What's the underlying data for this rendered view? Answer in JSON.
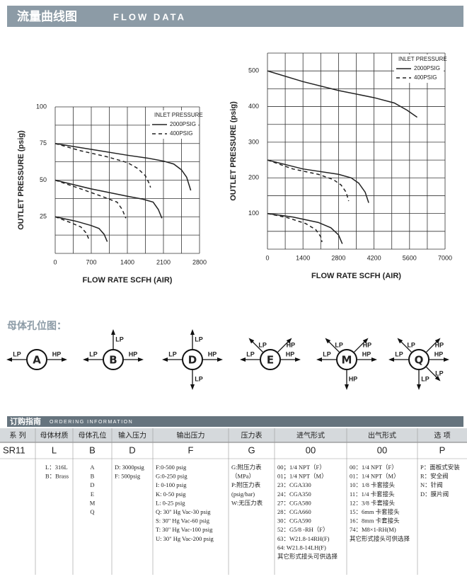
{
  "header": {
    "title_cn": "流量曲线图",
    "title_en": "FLOW DATA"
  },
  "chart_data": [
    {
      "type": "line",
      "y_label": "OUTLET PRESSURE (psig)",
      "x_label": "FLOW RATE SCFH (AIR)",
      "legend_title": "INLET PRESSURE",
      "xlim": [
        0,
        2800
      ],
      "xticks": [
        0,
        700,
        1400,
        2100,
        2800
      ],
      "ylim": [
        0,
        100
      ],
      "yticks": [
        25,
        50,
        75,
        100
      ],
      "xgrid": [
        0,
        350,
        700,
        1050,
        1400,
        1750,
        2100,
        2450,
        2800
      ],
      "ygrid": [
        0,
        12.5,
        25,
        37.5,
        50,
        62.5,
        75,
        87.5,
        100
      ],
      "series": [
        {
          "name": "2000PSIG",
          "color": "#222222",
          "dashed": false,
          "curves": [
            {
              "x": [
                0,
                700,
                1400,
                1800,
                2100,
                2300,
                2450,
                2550,
                2630
              ],
              "values": [
                75,
                71,
                67,
                65,
                63,
                61,
                57,
                52,
                43
              ]
            },
            {
              "x": [
                0,
                700,
                1400,
                1700,
                1900,
                2000,
                2070
              ],
              "values": [
                50,
                44,
                39,
                37,
                35,
                30,
                24
              ]
            },
            {
              "x": [
                0,
                400,
                700,
                850,
                950,
                1010
              ],
              "values": [
                25,
                22,
                19,
                17,
                13,
                8
              ]
            }
          ]
        },
        {
          "name": "400PSIG",
          "color": "#222222",
          "dashed": true,
          "curves": [
            {
              "x": [
                0,
                500,
                1000,
                1400,
                1600,
                1750,
                1820,
                1850
              ],
              "values": [
                75,
                70,
                66,
                62,
                58,
                53,
                48,
                45
              ]
            },
            {
              "x": [
                0,
                500,
                900,
                1200,
                1300,
                1370
              ],
              "values": [
                50,
                44,
                39,
                35,
                30,
                24
              ]
            },
            {
              "x": [
                0,
                300,
                500,
                600,
                650
              ],
              "values": [
                25,
                21,
                18,
                14,
                10
              ]
            }
          ]
        }
      ]
    },
    {
      "type": "line",
      "y_label": "OUTLET PRESSURE (psig)",
      "x_label": "FLOW RATE SCFH (AIR)",
      "legend_title": "INLET PRESSURE",
      "xlim": [
        0,
        7000
      ],
      "xticks": [
        0,
        1400,
        2800,
        4200,
        5600,
        7000
      ],
      "ylim": [
        0,
        550
      ],
      "yticks": [
        100,
        200,
        300,
        400,
        500
      ],
      "xgrid": [
        0,
        700,
        1400,
        2100,
        2800,
        3500,
        4200,
        4900,
        5600,
        6300,
        7000
      ],
      "ygrid": [
        0,
        50,
        100,
        150,
        200,
        250,
        300,
        350,
        400,
        450,
        500,
        550
      ],
      "series": [
        {
          "name": "2000PSIG",
          "color": "#222222",
          "dashed": false,
          "curves": [
            {
              "x": [
                0,
                1400,
                2800,
                4200,
                5000,
                5500,
                5900
              ],
              "values": [
                500,
                470,
                445,
                425,
                410,
                390,
                370
              ]
            },
            {
              "x": [
                0,
                1400,
                2800,
                3300,
                3600,
                3850,
                3990
              ],
              "values": [
                250,
                225,
                210,
                200,
                185,
                160,
                130
              ]
            },
            {
              "x": [
                0,
                1000,
                2000,
                2500,
                2800,
                2950
              ],
              "values": [
                100,
                90,
                75,
                60,
                40,
                15
              ]
            }
          ]
        },
        {
          "name": "400PSIG",
          "color": "#222222",
          "dashed": true,
          "curves": [
            {
              "x": [
                0,
                1000,
                2000,
                2600,
                2900,
                3100,
                3200
              ],
              "values": [
                250,
                225,
                210,
                195,
                180,
                160,
                135
              ]
            },
            {
              "x": [
                0,
                800,
                1500,
                1900,
                2100,
                2150
              ],
              "values": [
                100,
                88,
                72,
                55,
                35,
                20
              ]
            }
          ]
        }
      ]
    }
  ],
  "ports": {
    "title": "母体孔位图：",
    "items": [
      {
        "letter": "A",
        "arrows": [
          {
            "label": "LP",
            "dir": "left"
          },
          {
            "label": "HP",
            "dir": "right"
          }
        ]
      },
      {
        "letter": "B",
        "arrows": [
          {
            "label": "LP",
            "dir": "left"
          },
          {
            "label": "LP",
            "dir": "up"
          },
          {
            "label": "HP",
            "dir": "right"
          }
        ]
      },
      {
        "letter": "D",
        "arrows": [
          {
            "label": "LP",
            "dir": "left"
          },
          {
            "label": "LP",
            "dir": "up"
          },
          {
            "label": "HP",
            "dir": "right"
          },
          {
            "label": "LP",
            "dir": "down"
          }
        ]
      },
      {
        "letter": "E",
        "arrows": [
          {
            "label": "LP",
            "dir": "left"
          },
          {
            "label": "LP",
            "dir": "up-left"
          },
          {
            "label": "HP",
            "dir": "up-right"
          },
          {
            "label": "HP",
            "dir": "right"
          }
        ]
      },
      {
        "letter": "M",
        "arrows": [
          {
            "label": "LP",
            "dir": "left"
          },
          {
            "label": "LP",
            "dir": "up-left"
          },
          {
            "label": "HP",
            "dir": "up-right"
          },
          {
            "label": "HP",
            "dir": "right"
          },
          {
            "label": "HP",
            "dir": "down"
          }
        ]
      },
      {
        "letter": "Q",
        "arrows": [
          {
            "label": "LP",
            "dir": "left"
          },
          {
            "label": "LP",
            "dir": "up-left"
          },
          {
            "label": "HP",
            "dir": "up-right"
          },
          {
            "label": "HP",
            "dir": "right"
          },
          {
            "label": "LP",
            "dir": "down-right"
          },
          {
            "label": "LP",
            "dir": "down"
          }
        ]
      }
    ]
  },
  "ordering": {
    "title_cn": "订购指南",
    "title_en": "ORDERING INFORMATION",
    "headers": [
      "系 列",
      "母体材质",
      "母体孔位",
      "输入压力",
      "输出压力",
      "压力表",
      "进气形式",
      "出气形式",
      "选 项"
    ],
    "codes": [
      "SR11",
      "L",
      "B",
      "D",
      "F",
      "G",
      "00",
      "00",
      "P"
    ],
    "details": [
      [],
      [
        "L：316L",
        "B：Brass"
      ],
      [
        "A",
        "B",
        "D",
        "E",
        "M",
        "Q"
      ],
      [
        "D: 3000psig",
        "F: 500psig"
      ],
      [
        "F:0-500 psig",
        "G:0-250 psig",
        "I: 0-100 psig",
        "K: 0-50 psig",
        "L: 0-25 psig",
        "Q: 30\" Hg Vac-30 psig",
        "S: 30\" Hg Vac-60 psig",
        "T: 30\" Hg Vac-100 psig",
        "U: 30\" Hg Vac-200 psig"
      ],
      [
        "G:附压力表",
        "（MPa）",
        "P:附压力表",
        "(psig/bar)",
        "W:无压力表"
      ],
      [
        "00；1/4 NPT（F）",
        "01；1/4 NPT（M）",
        "23：CGA330",
        "24：CGA350",
        "27：CGA580",
        "28：CGA660",
        "30：CGA590",
        "52：G5/8 -RH（F）",
        "63：W21.8-14RH(F)",
        "64: W21.8-14LH(F)",
        "其它形式接头可供选择"
      ],
      [
        "00：1/4 NPT（F）",
        "01：1/4 NPT（M）",
        "10：1/8 卡套接头",
        "11：1/4 卡套接头",
        "12：3/8 卡套接头",
        "15：6mm 卡套接头",
        "16：8mm 卡套接头",
        "74：M8×1-RH(M)",
        "其它形式接头可供选择"
      ],
      [
        "P：面板式安装",
        "R：安全阀",
        "N：针阀",
        "D：膜片阀"
      ]
    ]
  }
}
